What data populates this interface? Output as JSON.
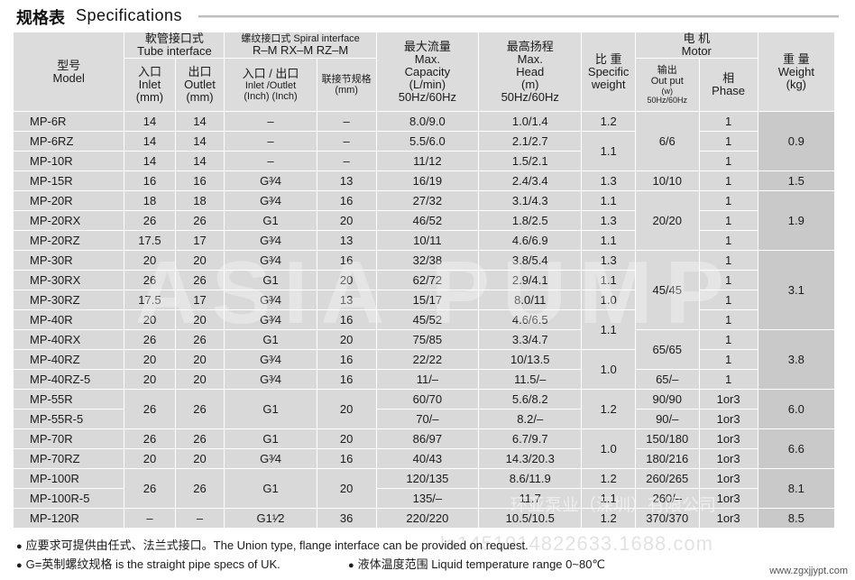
{
  "title": {
    "cn": "规格表",
    "en": "Specifications"
  },
  "header": {
    "model_cn": "型号",
    "model_en": "Model",
    "tube_cn": "軟管接口式",
    "tube_en": "Tube interface",
    "tube_inlet_cn": "入口",
    "tube_inlet_en": "Inlet",
    "tube_inlet_unit": "(mm)",
    "tube_outlet_cn": "出口",
    "tube_outlet_en": "Outlet",
    "tube_outlet_unit": "(mm)",
    "spiral_title": "螺纹接口式 Spiral interface",
    "spiral_sub": "R–M RX–M RZ–M",
    "spiral_io_cn": "入口 / 出口",
    "spiral_io_en": "Inlet /Outlet",
    "spiral_io_unit": "(Inch) (Inch)",
    "spiral_joint_cn": "联接节规格",
    "spiral_joint_unit": "(mm)",
    "cap_cn": "最大流量",
    "cap_en1": "Max.",
    "cap_en2": "Capacity",
    "cap_unit": "(L/min)",
    "cap_hz": "50Hz/60Hz",
    "head_cn": "最高扬程",
    "head_en1": "Max.",
    "head_en2": "Head",
    "head_unit": "(m)",
    "head_hz": "50Hz/60Hz",
    "sg_cn": "比  重",
    "sg_en1": "Specific",
    "sg_en2": "weight",
    "motor_cn": "电  机",
    "motor_en": "Motor",
    "output_cn": "输出",
    "output_en": "Out put",
    "output_unit": "(w)",
    "output_hz": "50Hz/60Hz",
    "phase_cn": "相",
    "phase_en": "Phase",
    "weight_cn": "重  量",
    "weight_en": "Weight",
    "weight_unit": "(kg)"
  },
  "rows": [
    {
      "model": "MP-6R",
      "inlet": "14",
      "outlet": "14",
      "thread": "–",
      "joint": "–",
      "capacity": "8.0/9.0",
      "head": "1.0/1.4",
      "phase": "1"
    },
    {
      "model": "MP-6RZ",
      "inlet": "14",
      "outlet": "14",
      "thread": "–",
      "joint": "–",
      "capacity": "5.5/6.0",
      "head": "2.1/2.7",
      "phase": "1"
    },
    {
      "model": "MP-10R",
      "inlet": "14",
      "outlet": "14",
      "thread": "–",
      "joint": "–",
      "capacity": "11/12",
      "head": "1.5/2.1",
      "phase": "1"
    },
    {
      "model": "MP-15R",
      "inlet": "16",
      "outlet": "16",
      "thread": "G³⁄4",
      "joint": "13",
      "capacity": "16/19",
      "head": "2.4/3.4",
      "phase": "1"
    },
    {
      "model": "MP-20R",
      "inlet": "18",
      "outlet": "18",
      "thread": "G³⁄4",
      "joint": "16",
      "capacity": "27/32",
      "head": "3.1/4.3",
      "phase": "1"
    },
    {
      "model": "MP-20RX",
      "inlet": "26",
      "outlet": "26",
      "thread": "G1",
      "joint": "20",
      "capacity": "46/52",
      "head": "1.8/2.5",
      "phase": "1"
    },
    {
      "model": "MP-20RZ",
      "inlet": "17.5",
      "outlet": "17",
      "thread": "G³⁄4",
      "joint": "13",
      "capacity": "10/11",
      "head": "4.6/6.9",
      "phase": "1"
    },
    {
      "model": "MP-30R",
      "inlet": "20",
      "outlet": "20",
      "thread": "G³⁄4",
      "joint": "16",
      "capacity": "32/38",
      "head": "3.8/5.4",
      "phase": "1"
    },
    {
      "model": "MP-30RX",
      "inlet": "26",
      "outlet": "26",
      "thread": "G1",
      "joint": "20",
      "capacity": "62/72",
      "head": "2.9/4.1",
      "phase": "1"
    },
    {
      "model": "MP-30RZ",
      "inlet": "17.5",
      "outlet": "17",
      "thread": "G³⁄4",
      "joint": "13",
      "capacity": "15/17",
      "head": "8.0/11",
      "phase": "1"
    },
    {
      "model": "MP-40R",
      "inlet": "20",
      "outlet": "20",
      "thread": "G³⁄4",
      "joint": "16",
      "capacity": "45/52",
      "head": "4.6/6.5",
      "phase": "1"
    },
    {
      "model": "MP-40RX",
      "inlet": "26",
      "outlet": "26",
      "thread": "G1",
      "joint": "20",
      "capacity": "75/85",
      "head": "3.3/4.7",
      "phase": "1"
    },
    {
      "model": "MP-40RZ",
      "inlet": "20",
      "outlet": "20",
      "thread": "G³⁄4",
      "joint": "16",
      "capacity": "22/22",
      "head": "10/13.5",
      "phase": "1"
    },
    {
      "model": "MP-40RZ-5",
      "inlet": "20",
      "outlet": "20",
      "thread": "G³⁄4",
      "joint": "16",
      "capacity": "11/–",
      "head": "11.5/–",
      "phase": "1"
    },
    {
      "model": "MP-55R",
      "capacity": "60/70",
      "head": "5.6/8.2",
      "phase": "1or3"
    },
    {
      "model": "MP-55R-5",
      "capacity": "70/–",
      "head": "8.2/–",
      "phase": "1or3"
    },
    {
      "model": "MP-70R",
      "inlet": "26",
      "outlet": "26",
      "thread": "G1",
      "joint": "20",
      "capacity": "86/97",
      "head": "6.7/9.7",
      "phase": "1or3"
    },
    {
      "model": "MP-70RZ",
      "inlet": "20",
      "outlet": "20",
      "thread": "G³⁄4",
      "joint": "16",
      "capacity": "40/43",
      "head": "14.3/20.3",
      "phase": "1or3"
    },
    {
      "model": "MP-100R",
      "capacity": "120/135",
      "head": "8.6/11.9",
      "phase": "1or3"
    },
    {
      "model": "MP-100R-5",
      "capacity": "135/–",
      "head": "11.7",
      "phase": "1or3"
    },
    {
      "model": "MP-120R",
      "inlet": "–",
      "outlet": "–",
      "thread": "G1¹⁄2",
      "joint": "36",
      "capacity": "220/220",
      "head": "10.5/10.5",
      "phase": "1or3"
    }
  ],
  "merged": {
    "io_55": {
      "inlet": "26",
      "outlet": "26",
      "thread": "G1",
      "joint": "20"
    },
    "io_100": {
      "inlet": "26",
      "outlet": "26",
      "thread": "G1",
      "joint": "20"
    },
    "sg": [
      "1.2",
      "1.1",
      "1.3",
      "1.1",
      "1.3",
      "1.1",
      "1.3",
      "1.1",
      "1.0",
      "1.1",
      "1.0",
      "1.2",
      "1.0",
      "1.2",
      "1.1",
      "1.2"
    ],
    "output": [
      "6/6",
      "10/10",
      "20/20",
      "45/45",
      "65/65",
      "65/–",
      "90/90",
      "90/–",
      "150/180",
      "180/216",
      "260/265",
      "260/–",
      "370/370"
    ],
    "weight": [
      "0.9",
      "1.5",
      "1.9",
      "3.1",
      "3.8",
      "6.0",
      "6.6",
      "8.1",
      "8.5"
    ]
  },
  "notes": {
    "union": "应要求可提供由任式、法兰式接口。The Union type, flange interface can be provided on request.",
    "thread": "G=英制螺纹规格 is the straight pipe specs of UK.",
    "temp": "液体温度范围 Liquid temperature range 0~80℃"
  },
  "watermarks": {
    "brand": "ASIA PUMP",
    "company": "环亚泵业（深圳）有限公司",
    "phone": "la1451914822633.1688.com",
    "site": "www.zgxjjypt.com"
  }
}
